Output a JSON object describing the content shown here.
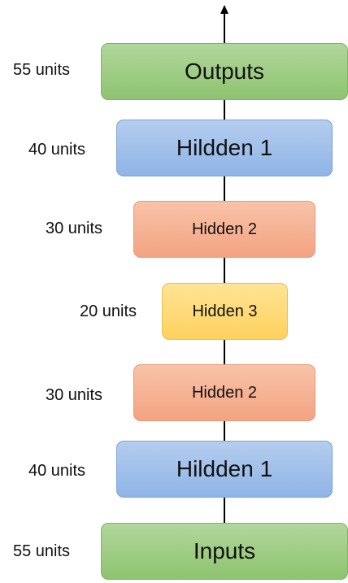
{
  "diagram": {
    "layers": [
      {
        "label": "Outputs",
        "units": "55 units",
        "color": "#9ccb7f"
      },
      {
        "label": "Hildden 1",
        "units": "40 units",
        "color": "#a0c0ea"
      },
      {
        "label": "Hidden 2",
        "units": "30 units",
        "color": "#f5b092"
      },
      {
        "label": "Hidden 3",
        "units": "20 units",
        "color": "#fed877"
      },
      {
        "label": "Hidden 2",
        "units": "30 units",
        "color": "#f5b092"
      },
      {
        "label": "Hildden 1",
        "units": "40 units",
        "color": "#a0c0ea"
      },
      {
        "label": "Inputs",
        "units": "55 units",
        "color": "#9ccb7f"
      }
    ]
  }
}
